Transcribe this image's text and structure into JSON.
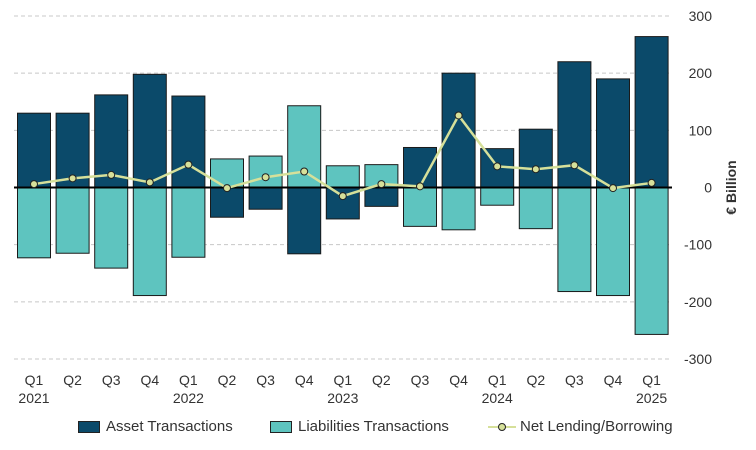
{
  "chart_data": {
    "type": "bar+line",
    "categories": [
      "Q1",
      "Q2",
      "Q3",
      "Q4",
      "Q1",
      "Q2",
      "Q3",
      "Q4",
      "Q1",
      "Q2",
      "Q3",
      "Q4",
      "Q1",
      "Q2",
      "Q3",
      "Q4",
      "Q1"
    ],
    "years": [
      {
        "label": "2021",
        "index": 0
      },
      {
        "label": "2022",
        "index": 4
      },
      {
        "label": "2023",
        "index": 8
      },
      {
        "label": "2024",
        "index": 12
      },
      {
        "label": "2025",
        "index": 16
      }
    ],
    "series": [
      {
        "name": "Asset Transactions",
        "type": "bar",
        "color": "#0b4a6a",
        "values": [
          130,
          130,
          162,
          198,
          160,
          -52,
          -38,
          -116,
          -55,
          -33,
          70,
          200,
          68,
          102,
          220,
          190,
          264
        ]
      },
      {
        "name": "Liabilities Transactions",
        "type": "bar",
        "color": "#5ec4bf",
        "values": [
          -123,
          -115,
          -141,
          -189,
          -122,
          50,
          55,
          143,
          38,
          40,
          -68,
          -74,
          -31,
          -72,
          -182,
          -189,
          -257
        ]
      },
      {
        "name": "Net Lending/Borrowing",
        "type": "line",
        "color": "#d6e09a",
        "values": [
          6,
          16,
          22,
          9,
          40,
          -1,
          18,
          28,
          -15,
          6,
          2,
          126,
          37,
          32,
          39,
          -1,
          8
        ]
      }
    ],
    "ylabel": "€ Billion",
    "ylim": [
      -300,
      300
    ],
    "yticks": [
      300,
      200,
      100,
      0,
      -100,
      -200,
      -300
    ],
    "grid": true,
    "legend": "bottom"
  }
}
